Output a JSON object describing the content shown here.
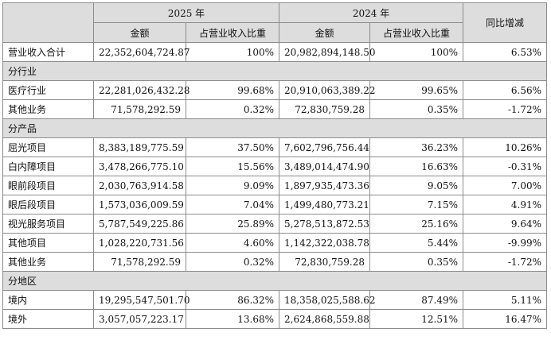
{
  "header": {
    "year_2025": "2025 年",
    "year_2024": "2024 年",
    "yoy": "同比增减",
    "amount": "金额",
    "ratio": "占营业收入比重"
  },
  "total": {
    "label": "营业收入合计",
    "a25": "22,352,604,724.87",
    "r25": "100%",
    "a24": "20,982,894,148.50",
    "r24": "100%",
    "yoy": "6.53%"
  },
  "sections": [
    {
      "title": "分行业",
      "rows": [
        {
          "label": "医疗行业",
          "a25": "22,281,026,432.28",
          "r25": "99.68%",
          "a24": "20,910,063,389.22",
          "r24": "99.65%",
          "yoy": "6.56%"
        },
        {
          "label": "其他业务",
          "a25": "71,578,292.59",
          "r25": "0.32%",
          "a24": "72,830,759.28",
          "r24": "0.35%",
          "yoy": "-1.72%"
        }
      ]
    },
    {
      "title": "分产品",
      "rows": [
        {
          "label": "屈光项目",
          "a25": "8,383,189,775.59",
          "r25": "37.50%",
          "a24": "7,602,796,756.44",
          "r24": "36.23%",
          "yoy": "10.26%"
        },
        {
          "label": "白内障项目",
          "a25": "3,478,266,775.10",
          "r25": "15.56%",
          "a24": "3,489,014,474.90",
          "r24": "16.63%",
          "yoy": "-0.31%"
        },
        {
          "label": "眼前段项目",
          "a25": "2,030,763,914.58",
          "r25": "9.09%",
          "a24": "1,897,935,473.36",
          "r24": "9.05%",
          "yoy": "7.00%"
        },
        {
          "label": "眼后段项目",
          "a25": "1,573,036,009.59",
          "r25": "7.04%",
          "a24": "1,499,480,773.21",
          "r24": "7.15%",
          "yoy": "4.91%"
        },
        {
          "label": "视光服务项目",
          "a25": "5,787,549,225.86",
          "r25": "25.89%",
          "a24": "5,278,513,872.53",
          "r24": "25.16%",
          "yoy": "9.64%"
        },
        {
          "label": "其他项目",
          "a25": "1,028,220,731.56",
          "r25": "4.60%",
          "a24": "1,142,322,038.78",
          "r24": "5.44%",
          "yoy": "-9.99%"
        },
        {
          "label": "其他业务",
          "a25": "71,578,292.59",
          "r25": "0.32%",
          "a24": "72,830,759.28",
          "r24": "0.35%",
          "yoy": "-1.72%"
        }
      ]
    },
    {
      "title": "分地区",
      "rows": [
        {
          "label": "境内",
          "a25": "19,295,547,501.70",
          "r25": "86.32%",
          "a24": "18,358,025,588.62",
          "r24": "87.49%",
          "yoy": "5.11%"
        },
        {
          "label": "境外",
          "a25": "3,057,057,223.17",
          "r25": "13.68%",
          "a24": "2,624,868,559.88",
          "r24": "12.51%",
          "yoy": "16.47%"
        }
      ]
    }
  ]
}
